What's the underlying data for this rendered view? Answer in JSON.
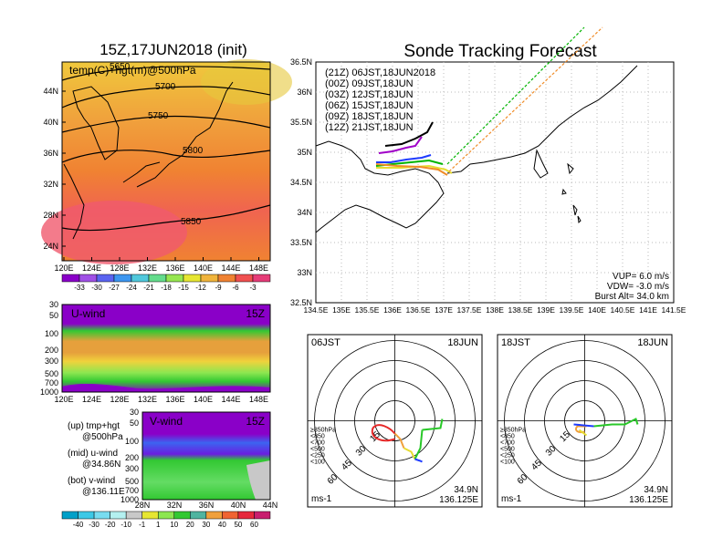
{
  "left_title": "15Z,17JUN2018 (init)",
  "right_title": "Sonde Tracking Forecast",
  "top_map": {
    "label": "temp(C)+hgt(m)@500hPa",
    "lat_ticks": [
      "44N",
      "40N",
      "36N",
      "32N",
      "28N",
      "24N"
    ],
    "lon_ticks": [
      "120E",
      "124E",
      "128E",
      "132E",
      "136E",
      "140E",
      "144E",
      "148E"
    ],
    "contour_labels": [
      "5650",
      "5700",
      "5750",
      "5800",
      "5850"
    ],
    "colorbar_ticks": [
      "-33",
      "-30",
      "-27",
      "-24",
      "-21",
      "-18",
      "-15",
      "-12",
      "-9",
      "-6",
      "-3"
    ],
    "colorbar_colors": [
      "#8a00c8",
      "#a050e6",
      "#5a64f0",
      "#3c96f0",
      "#50c8dc",
      "#64dc8c",
      "#96e650",
      "#e6e632",
      "#f0b43c",
      "#f08232",
      "#f05050",
      "#e63c78"
    ]
  },
  "u_wind": {
    "label": "U-wind",
    "time": "15Z",
    "y_ticks": [
      "30",
      "50",
      "100",
      "200",
      "300",
      "500",
      "700",
      "1000"
    ],
    "x_ticks": [
      "120E",
      "124E",
      "128E",
      "132E",
      "136E",
      "140E",
      "144E",
      "148E"
    ]
  },
  "v_wind": {
    "label": "V-wind",
    "time": "15Z",
    "y_ticks": [
      "30",
      "50",
      "100",
      "200",
      "300",
      "500",
      "700",
      "1000"
    ],
    "x_ticks": [
      "28N",
      "32N",
      "36N",
      "40N",
      "44N"
    ]
  },
  "legend_notes": [
    [
      "(up) tmp+hgt",
      "@500hPa"
    ],
    [
      "(mid) u-wind",
      "@34.86N"
    ],
    [
      "(bot) v-wind",
      "@136.11E"
    ]
  ],
  "wind_colorbar": {
    "ticks": [
      "-40",
      "-30",
      "-20",
      "-10",
      "-1",
      "1",
      "10",
      "20",
      "30",
      "40",
      "50",
      "60"
    ],
    "colors": [
      "#00a0c8",
      "#3cc8e6",
      "#78dcf0",
      "#b4f0f0",
      "#c8c8c8",
      "#e6e632",
      "#8ce650",
      "#32c832",
      "#50b4a0",
      "#f0a03c",
      "#f06432",
      "#e6283c",
      "#c81e6e"
    ]
  },
  "track_map": {
    "lat_ticks": [
      "36.5N",
      "36N",
      "35.5N",
      "35N",
      "34.5N",
      "34N",
      "33.5N",
      "33N",
      "32.5N"
    ],
    "lon_ticks": [
      "134.5E",
      "135E",
      "135.5E",
      "136E",
      "136.5E",
      "137E",
      "137.5E",
      "138E",
      "138.5E",
      "139E",
      "139.5E",
      "140E",
      "140.5E",
      "141E",
      "141.5E"
    ],
    "launches": [
      {
        "text": "(21Z) 06JST,18JUN2018",
        "color": "#000000"
      },
      {
        "text": "(00Z) 09JST,18JUN",
        "color": "#a000c8"
      },
      {
        "text": "(03Z) 12JST,18JUN",
        "color": "#1e3cff"
      },
      {
        "text": "(06Z) 15JST,18JUN",
        "color": "#00b400"
      },
      {
        "text": "(09Z) 18JST,18JUN",
        "color": "#e6dc32"
      },
      {
        "text": "(12Z) 21JST,18JUN",
        "color": "#f08c28"
      }
    ],
    "params": [
      "VUP= 6.0 m/s",
      "VDW= -3.0 m/s",
      "Burst Alt= 34.0 km"
    ]
  },
  "hodograph_left": {
    "time_label": "06JST",
    "date_label": "18JUN",
    "ring_labels": [
      "15",
      "30",
      "45",
      "60"
    ],
    "levels": [
      {
        "text": "≥850hPa",
        "color": "#e62828"
      },
      {
        "text": "<850",
        "color": "#f0a03c"
      },
      {
        "text": "<700",
        "color": "#e6dc32"
      },
      {
        "text": "<500",
        "color": "#28c828"
      },
      {
        "text": "<250",
        "color": "#1ec8c8"
      },
      {
        "text": "<100",
        "color": "#1e3cff"
      }
    ],
    "unit": "ms-1",
    "location": [
      "34.9N",
      "136.125E"
    ]
  },
  "hodograph_right": {
    "time_label": "18JST",
    "date_label": "18JUN",
    "ring_labels": [
      "15",
      "30",
      "45",
      "60"
    ],
    "levels": [
      {
        "text": "≥850hPa",
        "color": "#e62828"
      },
      {
        "text": "<850",
        "color": "#f0a03c"
      },
      {
        "text": "<700",
        "color": "#e6dc32"
      },
      {
        "text": "<500",
        "color": "#28c828"
      },
      {
        "text": "<250",
        "color": "#1ec8c8"
      },
      {
        "text": "<100",
        "color": "#1e3cff"
      }
    ],
    "unit": "ms-1",
    "location": [
      "34.9N",
      "136.125E"
    ]
  }
}
